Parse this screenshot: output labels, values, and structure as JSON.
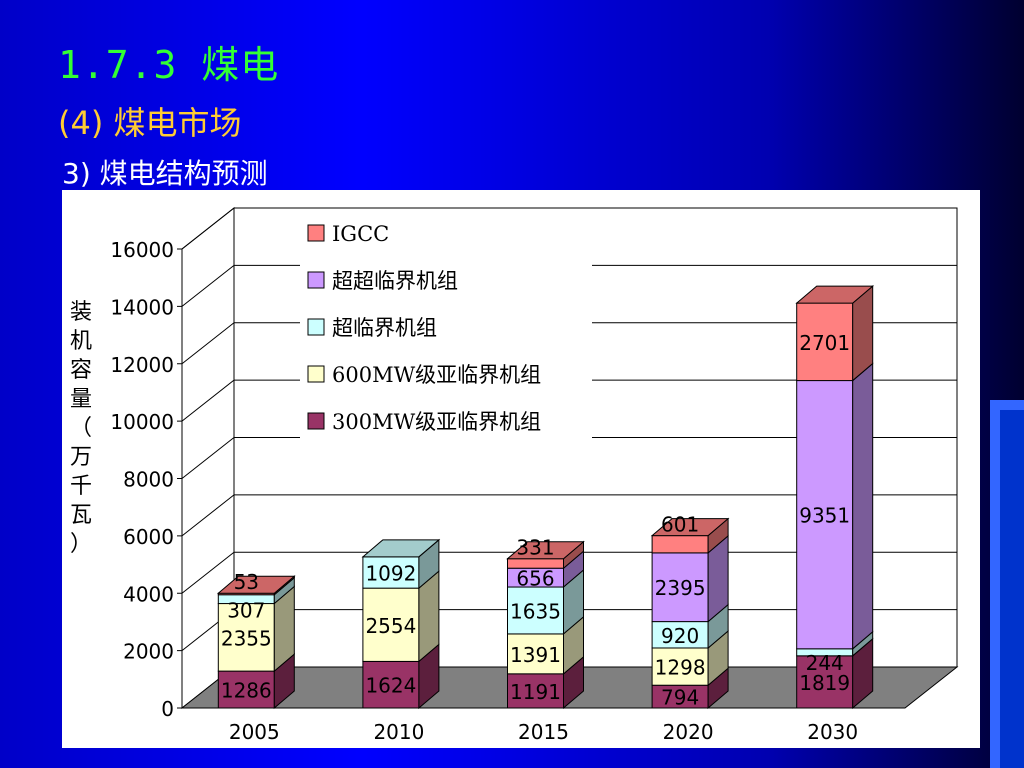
{
  "header": {
    "title": "1.7.3 煤电",
    "subtitle": "(4) 煤电市场",
    "section": "3) 煤电结构预测"
  },
  "colors": {
    "background": "#0000ff",
    "title": "#33ff33",
    "subtitle": "#ffcc33"
  },
  "chart_data": {
    "type": "bar",
    "stacked": true,
    "style": "3d",
    "categories": [
      "2005",
      "2010",
      "2015",
      "2020",
      "2030"
    ],
    "ylabel": "装机容量（万千瓦）",
    "ylim": [
      0,
      16000
    ],
    "yticks": [
      "0",
      "2000",
      "4000",
      "6000",
      "8000",
      "10000",
      "12000",
      "14000",
      "16000"
    ],
    "grid": true,
    "legend_position": "top-left",
    "series": [
      {
        "name": "300MW级亚临界机组",
        "color": "#993366",
        "values": [
          1286,
          1624,
          1191,
          794,
          1819
        ]
      },
      {
        "name": "600MW级亚临界机组",
        "color": "#ffffcc",
        "values": [
          2355,
          2554,
          1391,
          1298,
          0
        ]
      },
      {
        "name": "超临界机组",
        "color": "#ccffff",
        "values": [
          307,
          1092,
          1635,
          920,
          244
        ]
      },
      {
        "name": "超超临界机组",
        "color": "#cc99ff",
        "values": [
          0,
          0,
          656,
          2395,
          9351
        ]
      },
      {
        "name": "IGCC",
        "color": "#ff8080",
        "values": [
          53,
          0,
          331,
          601,
          2701
        ]
      }
    ],
    "data_labels": [
      [
        "1286",
        "2355",
        "307",
        null,
        "53"
      ],
      [
        "1624",
        "2554",
        "1092",
        null,
        null
      ],
      [
        "1191",
        "1391",
        "1635",
        "656",
        "331"
      ],
      [
        "794",
        "1298",
        "920",
        "2395",
        "601"
      ],
      [
        "1819",
        null,
        "244",
        "9351",
        "2701"
      ]
    ],
    "legend_order": [
      "IGCC",
      "超超临界机组",
      "超临界机组",
      "600MW级亚临界机组",
      "300MW级亚临界机组"
    ]
  }
}
